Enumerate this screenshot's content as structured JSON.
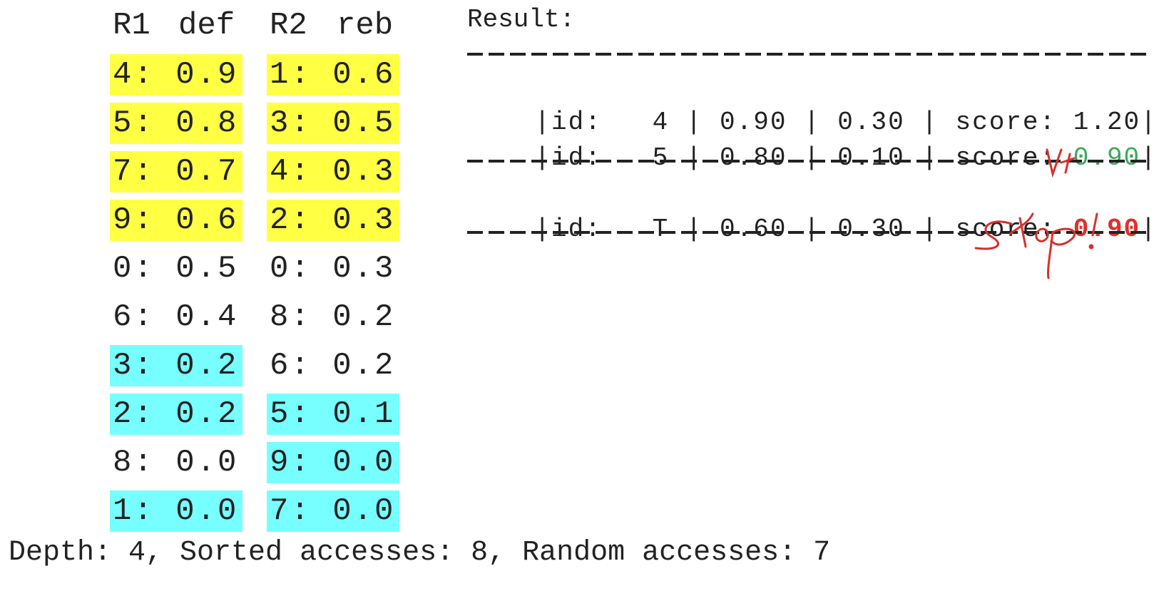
{
  "lists": {
    "headers": [
      "R1",
      "def",
      "R2",
      "reb"
    ],
    "rows": [
      {
        "left": "4: 0.9",
        "right": "1: 0.6",
        "left_hl": "yellow",
        "right_hl": "yellow"
      },
      {
        "left": "5: 0.8",
        "right": "3: 0.5",
        "left_hl": "yellow",
        "right_hl": "yellow"
      },
      {
        "left": "7: 0.7",
        "right": "4: 0.3",
        "left_hl": "yellow",
        "right_hl": "yellow"
      },
      {
        "left": "9: 0.6",
        "right": "2: 0.3",
        "left_hl": "yellow",
        "right_hl": "yellow"
      },
      {
        "left": "0: 0.5",
        "right": "0: 0.3",
        "left_hl": "none",
        "right_hl": "none"
      },
      {
        "left": "6: 0.4",
        "right": "8: 0.2",
        "left_hl": "none",
        "right_hl": "none"
      },
      {
        "left": "3: 0.2",
        "right": "6: 0.2",
        "left_hl": "cyan",
        "right_hl": "none"
      },
      {
        "left": "2: 0.2",
        "right": "5: 0.1",
        "left_hl": "cyan",
        "right_hl": "cyan"
      },
      {
        "left": "8: 0.0",
        "right": "9: 0.0",
        "left_hl": "none",
        "right_hl": "cyan"
      },
      {
        "left": "1: 0.0",
        "right": "7: 0.0",
        "left_hl": "cyan",
        "right_hl": "cyan"
      }
    ]
  },
  "result": {
    "title": "Result:",
    "rows": [
      {
        "prefix": "|id:   4 | 0.90 | 0.30 | score: ",
        "score": "1.20",
        "suffix": "|",
        "score_style": "normal"
      },
      {
        "prefix": "|id:   5 | 0.80 | 0.10 | score: ",
        "score": "0.90",
        "suffix": "|",
        "score_style": "green"
      },
      {
        "prefix": "|id:   T | 0.60 | 0.30 | score: ",
        "score": "0.90",
        "suffix": "|",
        "score_style": "red"
      }
    ]
  },
  "annotations": {
    "geq_symbol": "≥",
    "stop_text": "stop!",
    "color": "#d8302a"
  },
  "footer": {
    "text": "Depth: 4, Sorted accesses: 8, Random accesses: 7"
  },
  "colors": {
    "highlight_yellow": "#ffff44",
    "highlight_cyan": "#77ffff",
    "score_green": "#3aa85a",
    "score_red": "#e0302a"
  }
}
